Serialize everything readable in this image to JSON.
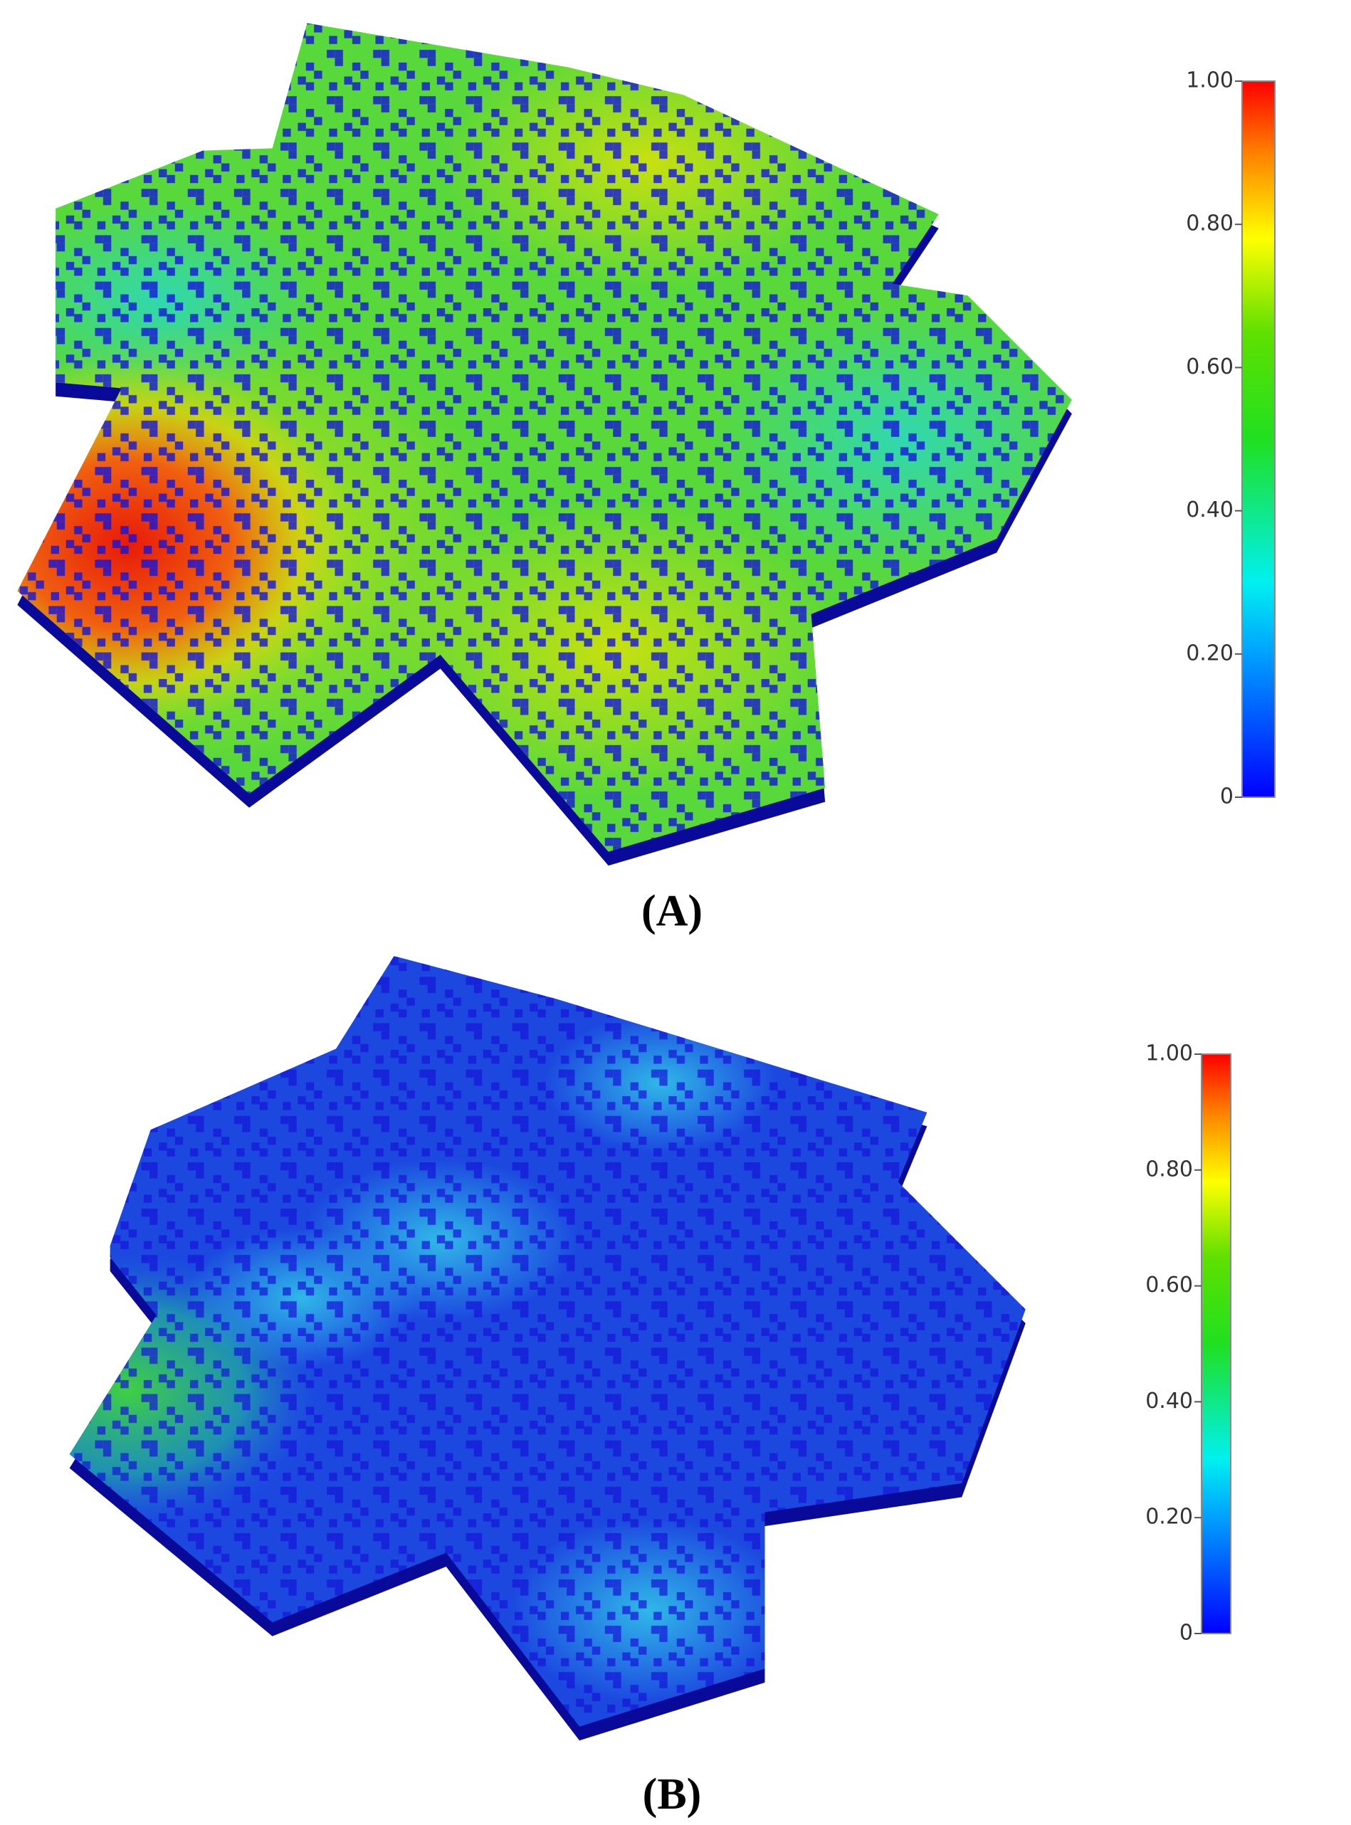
{
  "panels": [
    {
      "label": "(A)",
      "colorbar": {
        "ticks": [
          0,
          {
            "value": 0.2,
            "label": "0.20"
          },
          {
            "value": 0.4,
            "label": "0.40"
          },
          {
            "value": 0.6,
            "label": "0.60"
          },
          {
            "value": 0.8,
            "label": "0.80"
          },
          {
            "value": 1,
            "label": "1.00"
          }
        ]
      }
    },
    {
      "label": "(B)",
      "colorbar": {
        "ticks": [
          0,
          {
            "value": 0.2,
            "label": "0.20"
          },
          {
            "value": 0.4,
            "label": "0.40"
          },
          {
            "value": 0.6,
            "label": "0.60"
          },
          {
            "value": 0.8,
            "label": "0.80"
          },
          {
            "value": 1,
            "label": "1.00"
          }
        ]
      }
    }
  ]
}
